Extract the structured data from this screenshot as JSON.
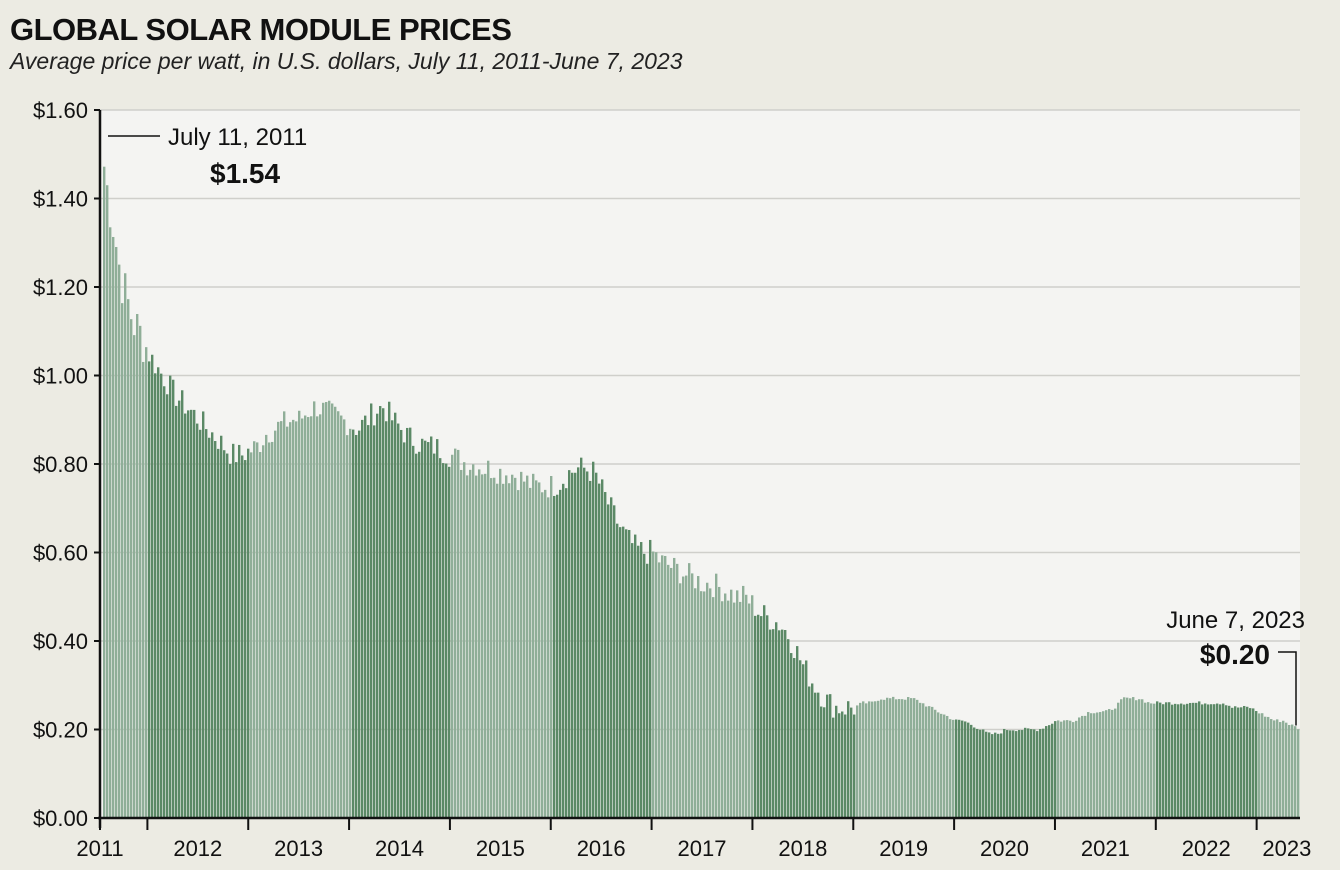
{
  "chart_data": {
    "type": "bar",
    "title": "GLOBAL SOLAR MODULE PRICES",
    "subtitle": "Average price per watt, in U.S. dollars, July 11, 2011-June 7, 2023",
    "xlabel": "",
    "ylabel": "",
    "ylim": [
      0,
      1.6
    ],
    "yticks": [
      0,
      0.2,
      0.4,
      0.6,
      0.8,
      1.0,
      1.2,
      1.4,
      1.6
    ],
    "ytick_labels": [
      "$0.00",
      "$0.20",
      "$0.40",
      "$0.60",
      "$0.80",
      "$1.00",
      "$1.20",
      "$1.40",
      "$1.60"
    ],
    "xlim": [
      2011.53,
      2023.43
    ],
    "grid": true,
    "year_ticks": [
      2011.53,
      2012.0,
      2013.0,
      2014.0,
      2015.0,
      2016.0,
      2017.0,
      2018.0,
      2019.0,
      2020.0,
      2021.0,
      2022.0,
      2023.0
    ],
    "year_labels": [
      {
        "label": "2011",
        "x": 2011.53
      },
      {
        "label": "2012",
        "x": 2012.5
      },
      {
        "label": "2013",
        "x": 2013.5
      },
      {
        "label": "2014",
        "x": 2014.5
      },
      {
        "label": "2015",
        "x": 2015.5
      },
      {
        "label": "2016",
        "x": 2016.5
      },
      {
        "label": "2017",
        "x": 2017.5
      },
      {
        "label": "2018",
        "x": 2018.5
      },
      {
        "label": "2019",
        "x": 2019.5
      },
      {
        "label": "2020",
        "x": 2020.5
      },
      {
        "label": "2021",
        "x": 2021.5
      },
      {
        "label": "2022",
        "x": 2022.5
      },
      {
        "label": "2023",
        "x": 2023.3
      }
    ],
    "series": [
      {
        "x": [
          2011.53,
          2011.57,
          2011.62,
          2011.66,
          2011.7,
          2011.75,
          2011.8,
          2011.85,
          2011.9,
          2011.95,
          2012.0,
          2012.08,
          2012.17,
          2012.25,
          2012.33,
          2012.42,
          2012.5,
          2012.58,
          2012.67,
          2012.75,
          2012.83,
          2012.92,
          2013.0,
          2013.08,
          2013.17,
          2013.25,
          2013.33,
          2013.42,
          2013.5,
          2013.58,
          2013.67,
          2013.75,
          2013.83,
          2013.92,
          2014.0,
          2014.08,
          2014.17,
          2014.25,
          2014.33,
          2014.42,
          2014.5,
          2014.58,
          2014.67,
          2014.75,
          2014.83,
          2014.92,
          2015.0,
          2015.08,
          2015.17,
          2015.25,
          2015.33,
          2015.42,
          2015.5,
          2015.58,
          2015.67,
          2015.75,
          2015.83,
          2015.92,
          2016.0,
          2016.08,
          2016.17,
          2016.25,
          2016.33,
          2016.42,
          2016.5,
          2016.58,
          2016.67,
          2016.75,
          2016.83,
          2016.92,
          2017.0,
          2017.08,
          2017.17,
          2017.25,
          2017.33,
          2017.42,
          2017.5,
          2017.58,
          2017.67,
          2017.75,
          2017.83,
          2017.92,
          2018.0,
          2018.08,
          2018.17,
          2018.25,
          2018.33,
          2018.42,
          2018.5,
          2018.58,
          2018.67,
          2018.75,
          2018.83,
          2018.92,
          2019.0,
          2019.08,
          2019.17,
          2019.25,
          2019.33,
          2019.42,
          2019.5,
          2019.58,
          2019.67,
          2019.75,
          2019.83,
          2019.92,
          2020.0,
          2020.08,
          2020.17,
          2020.25,
          2020.33,
          2020.42,
          2020.5,
          2020.58,
          2020.67,
          2020.75,
          2020.83,
          2020.92,
          2021.0,
          2021.08,
          2021.17,
          2021.25,
          2021.33,
          2021.42,
          2021.5,
          2021.58,
          2021.67,
          2021.75,
          2021.83,
          2021.92,
          2022.0,
          2022.08,
          2022.17,
          2022.25,
          2022.33,
          2022.42,
          2022.5,
          2022.58,
          2022.67,
          2022.75,
          2022.83,
          2022.92,
          2023.0,
          2023.08,
          2023.17,
          2023.25,
          2023.33,
          2023.43
        ],
        "values": [
          1.54,
          1.45,
          1.38,
          1.33,
          1.26,
          1.2,
          1.16,
          1.12,
          1.1,
          1.08,
          1.05,
          1.02,
          0.99,
          0.96,
          0.94,
          0.92,
          0.9,
          0.88,
          0.86,
          0.84,
          0.82,
          0.82,
          0.83,
          0.84,
          0.87,
          0.88,
          0.89,
          0.9,
          0.9,
          0.92,
          0.93,
          0.92,
          0.91,
          0.9,
          0.89,
          0.88,
          0.9,
          0.92,
          0.93,
          0.9,
          0.88,
          0.86,
          0.85,
          0.84,
          0.84,
          0.83,
          0.82,
          0.81,
          0.8,
          0.8,
          0.79,
          0.79,
          0.78,
          0.78,
          0.77,
          0.76,
          0.75,
          0.75,
          0.75,
          0.76,
          0.78,
          0.79,
          0.79,
          0.78,
          0.74,
          0.7,
          0.66,
          0.63,
          0.61,
          0.6,
          0.6,
          0.58,
          0.57,
          0.56,
          0.55,
          0.54,
          0.53,
          0.53,
          0.52,
          0.51,
          0.5,
          0.5,
          0.48,
          0.46,
          0.45,
          0.44,
          0.42,
          0.38,
          0.34,
          0.31,
          0.28,
          0.26,
          0.25,
          0.25,
          0.25,
          0.26,
          0.26,
          0.27,
          0.27,
          0.27,
          0.27,
          0.27,
          0.26,
          0.25,
          0.24,
          0.23,
          0.22,
          0.22,
          0.21,
          0.2,
          0.19,
          0.19,
          0.2,
          0.2,
          0.2,
          0.2,
          0.2,
          0.21,
          0.22,
          0.22,
          0.22,
          0.23,
          0.24,
          0.24,
          0.24,
          0.25,
          0.27,
          0.27,
          0.27,
          0.26,
          0.26,
          0.26,
          0.26,
          0.26,
          0.26,
          0.26,
          0.26,
          0.26,
          0.26,
          0.25,
          0.25,
          0.25,
          0.24,
          0.23,
          0.22,
          0.22,
          0.21,
          0.2
        ]
      }
    ],
    "colors": {
      "light_band": "#8fae98",
      "dark_band": "#5b8966",
      "plot_background": "#f4f4f2",
      "grid": "#cfcfcb"
    },
    "annotations": [
      {
        "date_text": "July 11, 2011",
        "value_text": "$1.54",
        "x": 2011.53,
        "y": 1.54
      },
      {
        "date_text": "June 7, 2023",
        "value_text": "$0.20",
        "x": 2023.43,
        "y": 0.2
      }
    ]
  }
}
